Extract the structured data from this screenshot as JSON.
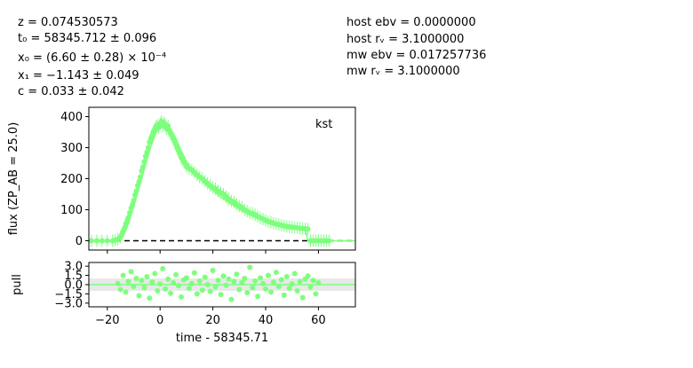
{
  "params_left": {
    "z": "z = 0.074530573",
    "t0": "t₀ = 58345.712 ± 0.096",
    "x0": "x₀ = (6.60 ± 0.28) × 10⁻⁴",
    "x1": "x₁ = −1.143 ± 0.049",
    "c": "c = 0.033 ± 0.042"
  },
  "params_right": {
    "hostebv": "host ebv = 0.0000000",
    "hostrv": "host rᵥ = 3.1000000",
    "mwebv": "mw ebv = 0.017257736",
    "mwrv": "mw rᵥ = 3.1000000"
  },
  "chart_data": [
    {
      "type": "scatter",
      "panel": "flux",
      "band_label": "kst",
      "ylabel": "flux (ZP_AB = 25.0)",
      "xlim": [
        -27,
        74
      ],
      "ylim": [
        -30,
        430
      ],
      "yticks": [
        0,
        100,
        200,
        300,
        400
      ],
      "xticks": [
        -20,
        0,
        20,
        40,
        60
      ],
      "color": "#7dff7d",
      "model_color": "#7dff7d",
      "zero_line": "dashed black",
      "model_curve": {
        "x": [
          -27,
          -17,
          -14,
          -12,
          -10,
          -8,
          -6,
          -4,
          -2,
          0,
          2,
          4,
          6,
          8,
          10,
          12,
          15,
          18,
          21,
          24,
          27,
          30,
          33,
          36,
          40,
          44,
          48,
          52,
          55,
          56,
          74
        ],
        "y": [
          0,
          0,
          15,
          55,
          110,
          170,
          230,
          290,
          340,
          372,
          378,
          360,
          330,
          290,
          255,
          230,
          200,
          175,
          155,
          135,
          118,
          102,
          88,
          76,
          62,
          52,
          45,
          40,
          37,
          0,
          0
        ]
      },
      "points_x": [
        -26,
        -24,
        -22,
        -20,
        -18,
        -17,
        -16,
        -15,
        -14.5,
        -14,
        -13.5,
        -13,
        -12.5,
        -12,
        -11.5,
        -11,
        -10.5,
        -10,
        -9.5,
        -9,
        -8.5,
        -8,
        -7.5,
        -7,
        -6.5,
        -6,
        -5.5,
        -5,
        -4.5,
        -4,
        -3.5,
        -3,
        -2.5,
        -2,
        -1.5,
        -1,
        -0.5,
        0,
        0.5,
        1,
        1.5,
        2,
        2.5,
        3,
        3.5,
        4,
        4.5,
        5,
        5.5,
        6,
        6.5,
        7,
        7.5,
        8,
        8.5,
        9,
        9.5,
        10,
        11,
        12,
        13,
        14,
        15,
        16,
        17,
        18,
        19,
        20,
        21,
        22,
        23,
        24,
        25,
        26,
        27,
        28,
        29,
        30,
        31,
        32,
        33,
        34,
        35,
        36,
        37,
        38,
        39,
        40,
        41,
        42,
        43,
        44,
        45,
        46,
        47,
        48,
        49,
        50,
        51,
        52,
        53,
        54,
        55,
        56,
        57,
        58,
        59,
        60,
        61,
        62,
        63,
        64
      ],
      "points_y": [
        0,
        0,
        0,
        0,
        0,
        2,
        5,
        12,
        20,
        30,
        40,
        55,
        62,
        75,
        90,
        105,
        115,
        130,
        148,
        160,
        178,
        190,
        205,
        225,
        238,
        255,
        272,
        285,
        300,
        318,
        330,
        340,
        352,
        360,
        368,
        372,
        365,
        378,
        385,
        370,
        380,
        375,
        360,
        370,
        355,
        345,
        338,
        330,
        320,
        310,
        298,
        290,
        280,
        268,
        262,
        255,
        250,
        240,
        232,
        228,
        220,
        212,
        205,
        200,
        192,
        185,
        178,
        172,
        168,
        160,
        155,
        150,
        142,
        135,
        128,
        125,
        118,
        112,
        108,
        100,
        95,
        90,
        88,
        84,
        78,
        74,
        70,
        66,
        62,
        60,
        56,
        54,
        52,
        50,
        48,
        46,
        45,
        44,
        43,
        42,
        40,
        40,
        39,
        38,
        0,
        0,
        0,
        0,
        0,
        0,
        0,
        0,
        0,
        0
      ]
    },
    {
      "type": "scatter",
      "panel": "pull",
      "ylabel": "pull",
      "xlabel": "time - 58345.71",
      "xlim": [
        -27,
        74
      ],
      "ylim": [
        -3.6,
        3.6
      ],
      "yticks": [
        "3.0",
        "1.5",
        "0.0",
        "−1.5",
        "−3.0"
      ],
      "ytick_values": [
        3.0,
        1.5,
        0.0,
        -1.5,
        -3.0
      ],
      "xticks": [
        -20,
        0,
        20,
        40,
        60
      ],
      "color": "#7dff7d",
      "band_shade": "#e8e8e8",
      "points_x": [
        -16,
        -15,
        -14,
        -13,
        -12,
        -11,
        -10,
        -9,
        -8,
        -7,
        -6,
        -5,
        -4,
        -3,
        -2,
        -1,
        0,
        1,
        2,
        3,
        4,
        5,
        6,
        7,
        8,
        9,
        10,
        11,
        12,
        13,
        14,
        15,
        16,
        17,
        18,
        19,
        20,
        21,
        22,
        23,
        24,
        25,
        26,
        27,
        28,
        29,
        30,
        31,
        32,
        33,
        34,
        35,
        36,
        37,
        38,
        39,
        40,
        41,
        42,
        43,
        44,
        45,
        46,
        47,
        48,
        49,
        50,
        51,
        52,
        53,
        54,
        55,
        56,
        57,
        58,
        59,
        60
      ],
      "points_y": [
        0.2,
        -0.8,
        1.5,
        -1.2,
        0.5,
        2.1,
        -0.3,
        1.0,
        -1.8,
        0.7,
        -0.5,
        1.3,
        -2.2,
        0.4,
        1.8,
        -1.0,
        0.1,
        2.6,
        -0.7,
        0.9,
        -1.4,
        0.3,
        1.6,
        -0.2,
        -2.0,
        0.8,
        1.1,
        -0.6,
        0.2,
        1.9,
        -1.5,
        0.6,
        -0.9,
        1.2,
        0.0,
        -1.1,
        2.3,
        -0.4,
        0.7,
        -1.6,
        1.4,
        -0.1,
        0.9,
        -2.4,
        0.5,
        1.7,
        -0.8,
        0.3,
        1.0,
        -1.3,
        2.8,
        -0.5,
        0.6,
        -1.9,
        1.1,
        0.2,
        -0.7,
        1.5,
        -1.2,
        0.4,
        2.0,
        -0.3,
        0.8,
        -1.7,
        1.3,
        -0.6,
        0.1,
        1.8,
        -1.0,
        0.5,
        -2.1,
        0.9,
        1.4,
        -0.4,
        0.7,
        -1.5,
        0.3
      ]
    }
  ]
}
